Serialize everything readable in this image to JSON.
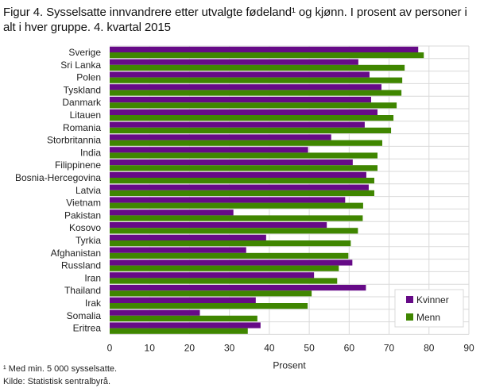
{
  "title": "Figur 4. Sysselsatte innvandrere etter utvalgte fødeland¹ og kjønn. I prosent av personer i alt i hver gruppe. 4. kvartal 2015",
  "footnotes": [
    "¹ Med min. 5 000 sysselsatte.",
    "Kilde: Statistisk sentralbyrå."
  ],
  "colors": {
    "Kvinner": "#660a87",
    "Menn": "#3f8600",
    "grid": "#d9d9d9"
  },
  "chart_data": {
    "type": "bar",
    "orientation": "horizontal",
    "xlabel": "Prosent",
    "xlim": [
      0,
      90
    ],
    "xticks": [
      0,
      10,
      20,
      30,
      40,
      50,
      60,
      70,
      80,
      90
    ],
    "grid": true,
    "legend_position": "bottom-right",
    "categories": [
      "Sverige",
      "Sri Lanka",
      "Polen",
      "Tyskland",
      "Danmark",
      "Litauen",
      "Romania",
      "Storbritannia",
      "India",
      "Filippinene",
      "Bosnia-Hercegovina",
      "Latvia",
      "Vietnam",
      "Pakistan",
      "Kosovo",
      "Tyrkia",
      "Afghanistan",
      "Russland",
      "Iran",
      "Thailand",
      "Irak",
      "Somalia",
      "Eritrea"
    ],
    "series": [
      {
        "name": "Kvinner",
        "values": [
          77.3,
          62.3,
          65.1,
          68.1,
          65.5,
          67.1,
          63.9,
          55.5,
          49.7,
          60.9,
          64.3,
          64.9,
          59.0,
          31.0,
          54.4,
          39.2,
          34.2,
          60.8,
          51.2,
          64.2,
          36.6,
          22.6,
          37.8
        ]
      },
      {
        "name": "Menn",
        "values": [
          78.7,
          73.9,
          73.3,
          73.1,
          71.9,
          71.1,
          70.5,
          68.3,
          67.1,
          67.1,
          66.3,
          66.3,
          63.5,
          63.4,
          62.2,
          60.4,
          59.8,
          57.4,
          57.0,
          50.6,
          49.6,
          37.0,
          34.6
        ]
      }
    ]
  }
}
